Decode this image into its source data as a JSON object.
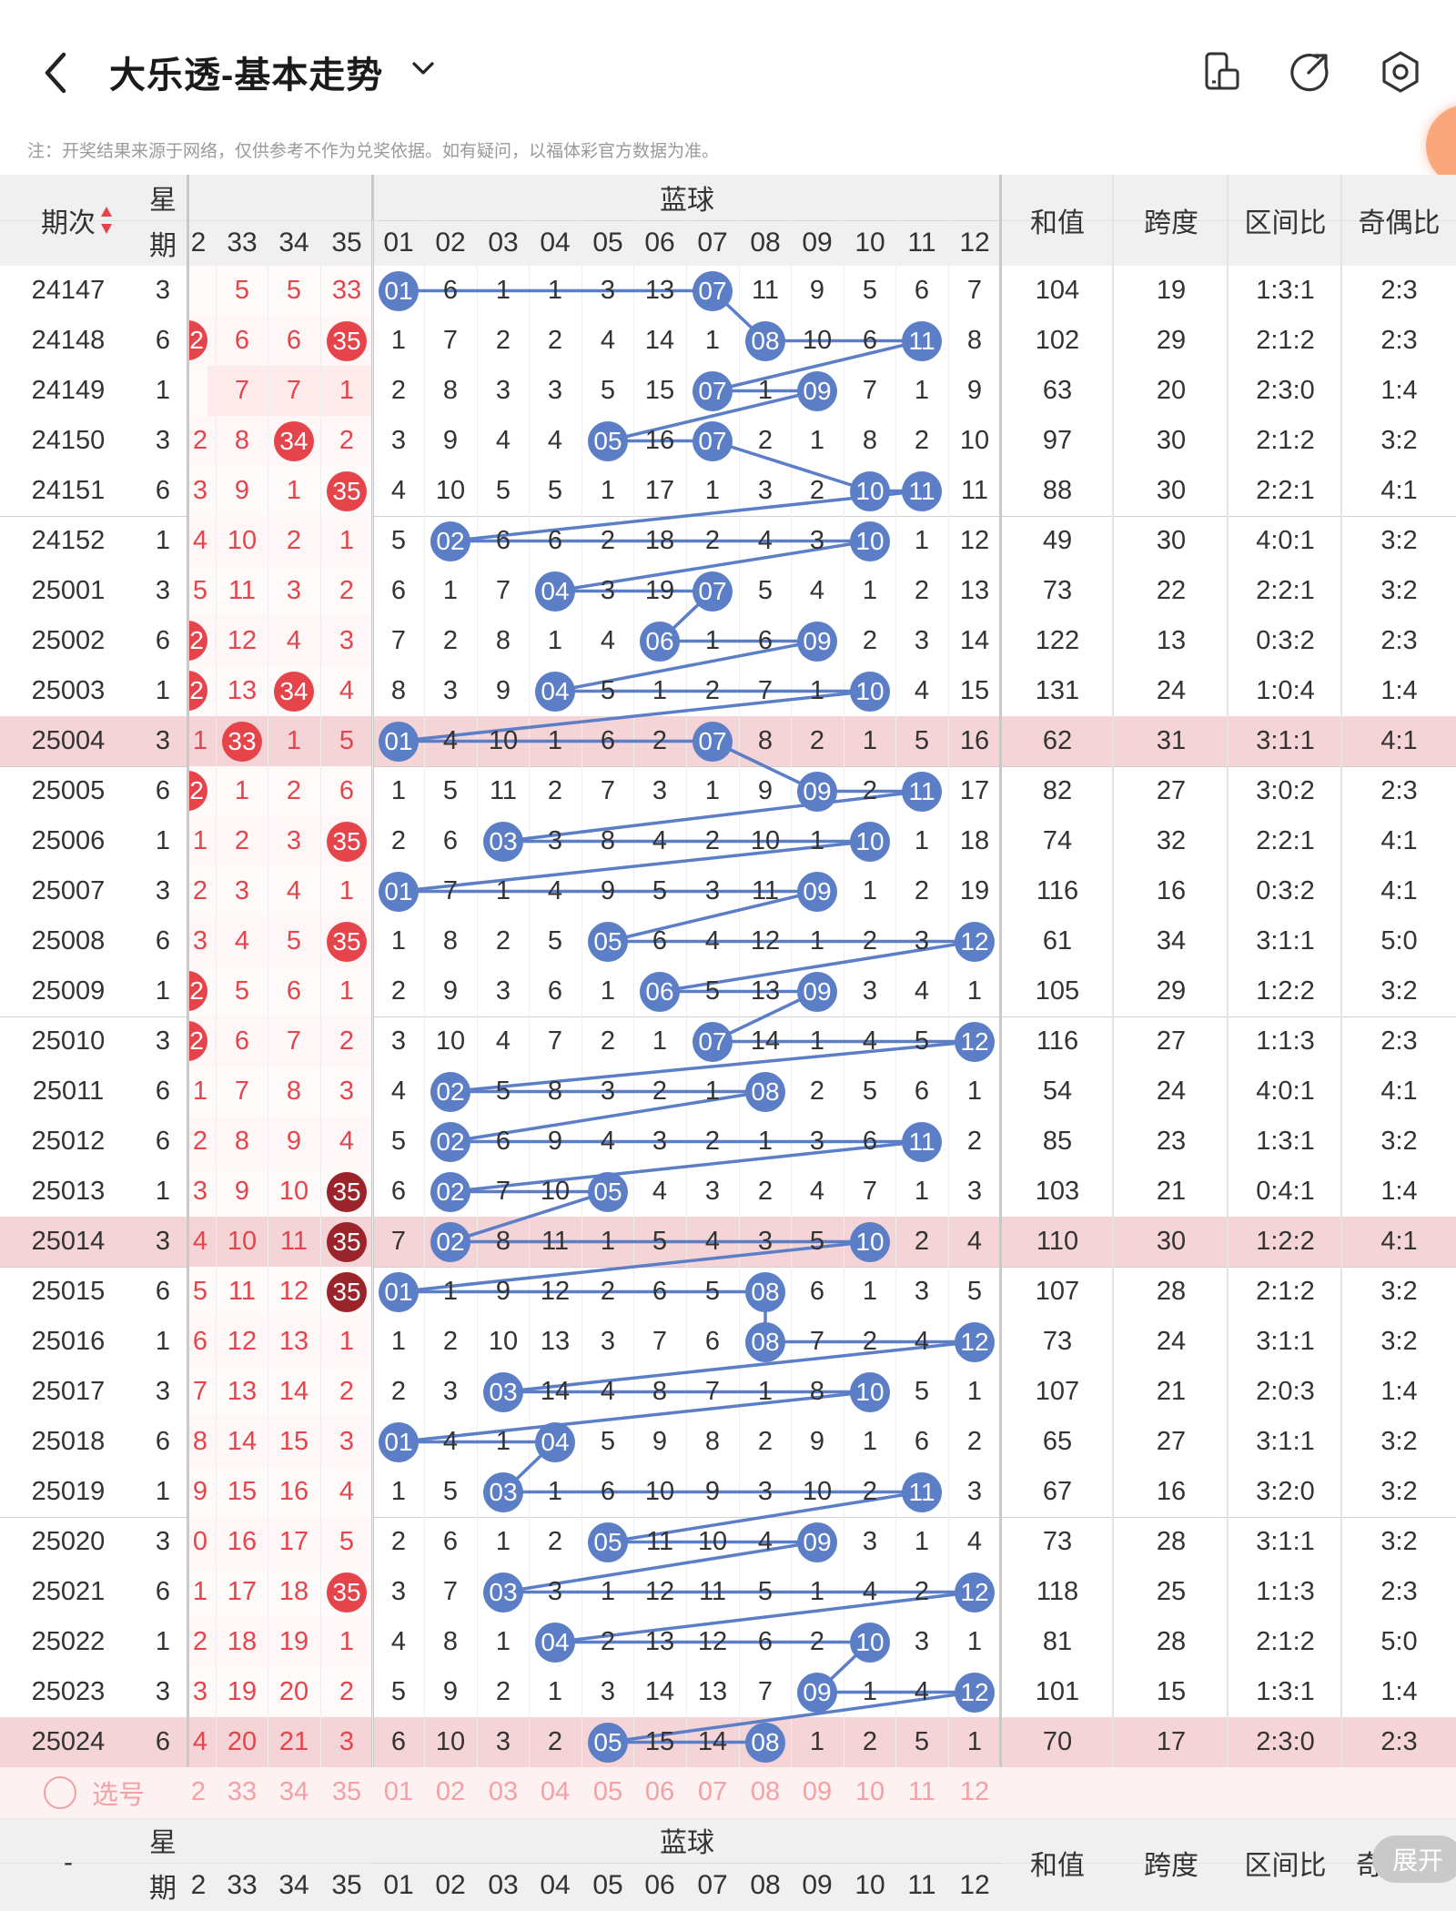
{
  "header": {
    "title": "大乐透-基本走势",
    "note": "注：开奖结果来源于网络，仅供参考不作为兑奖依据。如有疑问，以福体彩官方数据为准。"
  },
  "icons": {
    "back": "back-arrow-icon",
    "dropdown": "chevron-down-icon",
    "toolbar": [
      "device-mode-icon",
      "share-export-icon",
      "settings-hexagon-icon"
    ]
  },
  "colors": {
    "blue_ball": "#5b7ec7",
    "red_ball": "#e5444b",
    "dark_ball": "#9b242b",
    "highlight_row": "#f4d4d6",
    "header_bg": "#f0f0f0"
  },
  "columns": {
    "issue": "期次",
    "weekday_top": "星",
    "weekday_bottom": "期",
    "blue_group": "蓝球",
    "sum": "和值",
    "span": "跨度",
    "zone_ratio": "区间比",
    "odd_even": "奇偶比",
    "front_partial": "2",
    "front": [
      "33",
      "34",
      "35"
    ],
    "blue": [
      "01",
      "02",
      "03",
      "04",
      "05",
      "06",
      "07",
      "08",
      "09",
      "10",
      "11",
      "12"
    ]
  },
  "rows": [
    {
      "issue": "24147",
      "week": "3",
      "front_partial": "",
      "front": [
        "5",
        "5",
        "33"
      ],
      "front_marks": [
        "",
        "",
        ""
      ],
      "blue": [
        "01",
        "6",
        "1",
        "1",
        "3",
        "13",
        "07",
        "11",
        "9",
        "5",
        "6",
        "7"
      ],
      "sum": "104",
      "span": "19",
      "zone": "1:3:1",
      "oe": "2:3"
    },
    {
      "issue": "24148",
      "week": "6",
      "front_partial": "2",
      "front": [
        "6",
        "6",
        "35"
      ],
      "front_marks": [
        "",
        "",
        "red"
      ],
      "blue": [
        "1",
        "7",
        "2",
        "2",
        "4",
        "14",
        "1",
        "08",
        "10",
        "6",
        "11",
        "8"
      ],
      "sum": "102",
      "span": "29",
      "zone": "2:1:2",
      "oe": "2:3"
    },
    {
      "issue": "24149",
      "week": "1",
      "front_partial": "",
      "front": [
        "7",
        "7",
        "1"
      ],
      "front_marks": [
        "",
        "",
        ""
      ],
      "blue": [
        "2",
        "8",
        "3",
        "3",
        "5",
        "15",
        "07",
        "1",
        "09",
        "7",
        "1",
        "9"
      ],
      "sum": "63",
      "span": "20",
      "zone": "2:3:0",
      "oe": "1:4"
    },
    {
      "issue": "24150",
      "week": "3",
      "front_partial": "2",
      "front": [
        "8",
        "34",
        "2"
      ],
      "front_marks": [
        "",
        "red",
        ""
      ],
      "blue": [
        "3",
        "9",
        "4",
        "4",
        "05",
        "16",
        "07",
        "2",
        "1",
        "8",
        "2",
        "10"
      ],
      "sum": "97",
      "span": "30",
      "zone": "2:1:2",
      "oe": "3:2"
    },
    {
      "issue": "24151",
      "week": "6",
      "front_partial": "3",
      "front": [
        "9",
        "1",
        "35"
      ],
      "front_marks": [
        "",
        "",
        "red"
      ],
      "blue": [
        "4",
        "10",
        "5",
        "5",
        "1",
        "17",
        "1",
        "3",
        "2",
        "10",
        "11",
        "11"
      ],
      "sum": "88",
      "span": "30",
      "zone": "2:2:1",
      "oe": "4:1"
    },
    {
      "issue": "24152",
      "week": "1",
      "front_partial": "4",
      "front": [
        "10",
        "2",
        "1"
      ],
      "front_marks": [
        "",
        "",
        ""
      ],
      "blue": [
        "5",
        "02",
        "6",
        "6",
        "2",
        "18",
        "2",
        "4",
        "3",
        "10",
        "1",
        "12"
      ],
      "sum": "49",
      "span": "30",
      "zone": "4:0:1",
      "oe": "3:2"
    },
    {
      "issue": "25001",
      "week": "3",
      "front_partial": "5",
      "front": [
        "11",
        "3",
        "2"
      ],
      "front_marks": [
        "",
        "",
        ""
      ],
      "blue": [
        "6",
        "1",
        "7",
        "04",
        "3",
        "19",
        "07",
        "5",
        "4",
        "1",
        "2",
        "13"
      ],
      "sum": "73",
      "span": "22",
      "zone": "2:2:1",
      "oe": "3:2"
    },
    {
      "issue": "25002",
      "week": "6",
      "front_partial": "2",
      "front": [
        "12",
        "4",
        "3"
      ],
      "front_marks": [
        "",
        "",
        ""
      ],
      "blue": [
        "7",
        "2",
        "8",
        "1",
        "4",
        "06",
        "1",
        "6",
        "09",
        "2",
        "3",
        "14"
      ],
      "sum": "122",
      "span": "13",
      "zone": "0:3:2",
      "oe": "2:3"
    },
    {
      "issue": "25003",
      "week": "1",
      "front_partial": "2",
      "front": [
        "13",
        "34",
        "4"
      ],
      "front_marks": [
        "",
        "red",
        ""
      ],
      "blue": [
        "8",
        "3",
        "9",
        "04",
        "5",
        "1",
        "2",
        "7",
        "1",
        "10",
        "4",
        "15"
      ],
      "sum": "131",
      "span": "24",
      "zone": "1:0:4",
      "oe": "1:4"
    },
    {
      "issue": "25004",
      "week": "3",
      "front_partial": "1",
      "front": [
        "33",
        "1",
        "5"
      ],
      "front_marks": [
        "red",
        "",
        ""
      ],
      "blue": [
        "01",
        "4",
        "10",
        "1",
        "6",
        "2",
        "07",
        "8",
        "2",
        "1",
        "5",
        "16"
      ],
      "sum": "62",
      "span": "31",
      "zone": "3:1:1",
      "oe": "4:1"
    },
    {
      "issue": "25005",
      "week": "6",
      "front_partial": "2",
      "front": [
        "1",
        "2",
        "6"
      ],
      "front_marks": [
        "",
        "",
        ""
      ],
      "blue": [
        "1",
        "5",
        "11",
        "2",
        "7",
        "3",
        "1",
        "9",
        "09",
        "2",
        "11",
        "17"
      ],
      "sum": "82",
      "span": "27",
      "zone": "3:0:2",
      "oe": "2:3"
    },
    {
      "issue": "25006",
      "week": "1",
      "front_partial": "1",
      "front": [
        "2",
        "3",
        "35"
      ],
      "front_marks": [
        "",
        "",
        "red"
      ],
      "blue": [
        "2",
        "6",
        "03",
        "3",
        "8",
        "4",
        "2",
        "10",
        "1",
        "10",
        "1",
        "18"
      ],
      "sum": "74",
      "span": "32",
      "zone": "2:2:1",
      "oe": "4:1"
    },
    {
      "issue": "25007",
      "week": "3",
      "front_partial": "2",
      "front": [
        "3",
        "4",
        "1"
      ],
      "front_marks": [
        "",
        "",
        ""
      ],
      "blue": [
        "01",
        "7",
        "1",
        "4",
        "9",
        "5",
        "3",
        "11",
        "09",
        "1",
        "2",
        "19"
      ],
      "sum": "116",
      "span": "16",
      "zone": "0:3:2",
      "oe": "4:1"
    },
    {
      "issue": "25008",
      "week": "6",
      "front_partial": "3",
      "front": [
        "4",
        "5",
        "35"
      ],
      "front_marks": [
        "",
        "",
        "red"
      ],
      "blue": [
        "1",
        "8",
        "2",
        "5",
        "05",
        "6",
        "4",
        "12",
        "1",
        "2",
        "3",
        "12"
      ],
      "sum": "61",
      "span": "34",
      "zone": "3:1:1",
      "oe": "5:0"
    },
    {
      "issue": "25009",
      "week": "1",
      "front_partial": "2",
      "front": [
        "5",
        "6",
        "1"
      ],
      "front_marks": [
        "",
        "",
        ""
      ],
      "blue": [
        "2",
        "9",
        "3",
        "6",
        "1",
        "06",
        "5",
        "13",
        "09",
        "3",
        "4",
        "1"
      ],
      "sum": "105",
      "span": "29",
      "zone": "1:2:2",
      "oe": "3:2"
    },
    {
      "issue": "25010",
      "week": "3",
      "front_partial": "2",
      "front": [
        "6",
        "7",
        "2"
      ],
      "front_marks": [
        "",
        "",
        ""
      ],
      "blue": [
        "3",
        "10",
        "4",
        "7",
        "2",
        "1",
        "07",
        "14",
        "1",
        "4",
        "5",
        "12"
      ],
      "sum": "116",
      "span": "27",
      "zone": "1:1:3",
      "oe": "2:3"
    },
    {
      "issue": "25011",
      "week": "6",
      "front_partial": "1",
      "front": [
        "7",
        "8",
        "3"
      ],
      "front_marks": [
        "",
        "",
        ""
      ],
      "blue": [
        "4",
        "02",
        "5",
        "8",
        "3",
        "2",
        "1",
        "08",
        "2",
        "5",
        "6",
        "1"
      ],
      "sum": "54",
      "span": "24",
      "zone": "4:0:1",
      "oe": "4:1"
    },
    {
      "issue": "25012",
      "week": "6",
      "front_partial": "2",
      "front": [
        "8",
        "9",
        "4"
      ],
      "front_marks": [
        "",
        "",
        ""
      ],
      "blue": [
        "5",
        "02",
        "6",
        "9",
        "4",
        "3",
        "2",
        "1",
        "3",
        "6",
        "11",
        "2"
      ],
      "sum": "85",
      "span": "23",
      "zone": "1:3:1",
      "oe": "3:2"
    },
    {
      "issue": "25013",
      "week": "1",
      "front_partial": "3",
      "front": [
        "9",
        "10",
        "35"
      ],
      "front_marks": [
        "",
        "",
        "dark"
      ],
      "blue": [
        "6",
        "02",
        "7",
        "10",
        "05",
        "4",
        "3",
        "2",
        "4",
        "7",
        "1",
        "3"
      ],
      "sum": "103",
      "span": "21",
      "zone": "0:4:1",
      "oe": "1:4"
    },
    {
      "issue": "25014",
      "week": "3",
      "front_partial": "4",
      "front": [
        "10",
        "11",
        "35"
      ],
      "front_marks": [
        "",
        "",
        "dark"
      ],
      "blue": [
        "7",
        "02",
        "8",
        "11",
        "1",
        "5",
        "4",
        "3",
        "5",
        "10",
        "2",
        "4"
      ],
      "sum": "110",
      "span": "30",
      "zone": "1:2:2",
      "oe": "4:1"
    },
    {
      "issue": "25015",
      "week": "6",
      "front_partial": "5",
      "front": [
        "11",
        "12",
        "35"
      ],
      "front_marks": [
        "",
        "",
        "dark"
      ],
      "blue": [
        "01",
        "1",
        "9",
        "12",
        "2",
        "6",
        "5",
        "08",
        "6",
        "1",
        "3",
        "5"
      ],
      "sum": "107",
      "span": "28",
      "zone": "2:1:2",
      "oe": "3:2"
    },
    {
      "issue": "25016",
      "week": "1",
      "front_partial": "6",
      "front": [
        "12",
        "13",
        "1"
      ],
      "front_marks": [
        "",
        "",
        ""
      ],
      "blue": [
        "1",
        "2",
        "10",
        "13",
        "3",
        "7",
        "6",
        "08",
        "7",
        "2",
        "4",
        "12"
      ],
      "sum": "73",
      "span": "24",
      "zone": "3:1:1",
      "oe": "3:2"
    },
    {
      "issue": "25017",
      "week": "3",
      "front_partial": "7",
      "front": [
        "13",
        "14",
        "2"
      ],
      "front_marks": [
        "",
        "",
        ""
      ],
      "blue": [
        "2",
        "3",
        "03",
        "14",
        "4",
        "8",
        "7",
        "1",
        "8",
        "10",
        "5",
        "1"
      ],
      "sum": "107",
      "span": "21",
      "zone": "2:0:3",
      "oe": "1:4"
    },
    {
      "issue": "25018",
      "week": "6",
      "front_partial": "8",
      "front": [
        "14",
        "15",
        "3"
      ],
      "front_marks": [
        "",
        "",
        ""
      ],
      "blue": [
        "01",
        "4",
        "1",
        "04",
        "5",
        "9",
        "8",
        "2",
        "9",
        "1",
        "6",
        "2"
      ],
      "sum": "65",
      "span": "27",
      "zone": "3:1:1",
      "oe": "3:2"
    },
    {
      "issue": "25019",
      "week": "1",
      "front_partial": "9",
      "front": [
        "15",
        "16",
        "4"
      ],
      "front_marks": [
        "",
        "",
        ""
      ],
      "blue": [
        "1",
        "5",
        "03",
        "1",
        "6",
        "10",
        "9",
        "3",
        "10",
        "2",
        "11",
        "3"
      ],
      "sum": "67",
      "span": "16",
      "zone": "3:2:0",
      "oe": "3:2"
    },
    {
      "issue": "25020",
      "week": "3",
      "front_partial": "0",
      "front": [
        "16",
        "17",
        "5"
      ],
      "front_marks": [
        "",
        "",
        ""
      ],
      "blue": [
        "2",
        "6",
        "1",
        "2",
        "05",
        "11",
        "10",
        "4",
        "09",
        "3",
        "1",
        "4"
      ],
      "sum": "73",
      "span": "28",
      "zone": "3:1:1",
      "oe": "3:2"
    },
    {
      "issue": "25021",
      "week": "6",
      "front_partial": "1",
      "front": [
        "17",
        "18",
        "35"
      ],
      "front_marks": [
        "",
        "",
        "red"
      ],
      "blue": [
        "3",
        "7",
        "03",
        "3",
        "1",
        "12",
        "11",
        "5",
        "1",
        "4",
        "2",
        "12"
      ],
      "sum": "118",
      "span": "25",
      "zone": "1:1:3",
      "oe": "2:3"
    },
    {
      "issue": "25022",
      "week": "1",
      "front_partial": "2",
      "front": [
        "18",
        "19",
        "1"
      ],
      "front_marks": [
        "",
        "",
        ""
      ],
      "blue": [
        "4",
        "8",
        "1",
        "04",
        "2",
        "13",
        "12",
        "6",
        "2",
        "10",
        "3",
        "1"
      ],
      "sum": "81",
      "span": "28",
      "zone": "2:1:2",
      "oe": "5:0"
    },
    {
      "issue": "25023",
      "week": "3",
      "front_partial": "3",
      "front": [
        "19",
        "20",
        "2"
      ],
      "front_marks": [
        "",
        "",
        ""
      ],
      "blue": [
        "5",
        "9",
        "2",
        "1",
        "3",
        "14",
        "13",
        "7",
        "09",
        "1",
        "4",
        "12"
      ],
      "sum": "101",
      "span": "15",
      "zone": "1:3:1",
      "oe": "1:4"
    },
    {
      "issue": "25024",
      "week": "6",
      "front_partial": "4",
      "front": [
        "20",
        "21",
        "3"
      ],
      "front_marks": [
        "",
        "",
        ""
      ],
      "blue": [
        "6",
        "10",
        "3",
        "2",
        "05",
        "15",
        "14",
        "08",
        "1",
        "2",
        "5",
        "1"
      ],
      "sum": "70",
      "span": "17",
      "zone": "2:3:0",
      "oe": "2:3"
    }
  ],
  "highlight_rows": [
    9,
    19,
    29
  ],
  "blue_hits": [
    [
      0,
      6
    ],
    [
      7,
      10
    ],
    [
      6,
      8
    ],
    [
      4,
      6
    ],
    [
      9,
      10
    ],
    [
      1,
      9
    ],
    [
      3,
      6
    ],
    [
      5,
      8
    ],
    [
      3,
      9
    ],
    [
      0,
      6
    ],
    [
      8,
      10
    ],
    [
      2,
      9
    ],
    [
      0,
      8
    ],
    [
      4,
      11
    ],
    [
      5,
      8
    ],
    [
      6,
      11
    ],
    [
      1,
      7
    ],
    [
      1,
      10
    ],
    [
      1,
      4
    ],
    [
      1,
      9
    ],
    [
      0,
      7
    ],
    [
      7,
      11
    ],
    [
      2,
      9
    ],
    [
      0,
      3
    ],
    [
      2,
      10
    ],
    [
      4,
      8
    ],
    [
      2,
      11
    ],
    [
      3,
      9
    ],
    [
      8,
      11
    ],
    [
      4,
      7
    ]
  ],
  "pick_row": {
    "label": "选号",
    "front_partial": "2",
    "front": [
      "33",
      "34",
      "35"
    ],
    "blue": [
      "01",
      "02",
      "03",
      "04",
      "05",
      "06",
      "07",
      "08",
      "09",
      "10",
      "11",
      "12"
    ]
  },
  "footer_header": {
    "issue": "-",
    "odd_even_partial": "奇"
  },
  "expand_button": "展开"
}
